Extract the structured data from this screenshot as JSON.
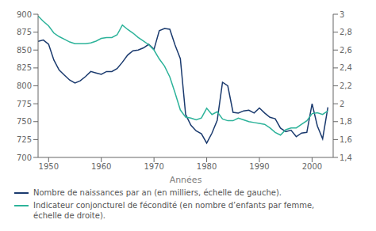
{
  "chart_data": {
    "type": "line",
    "xlabel": "Années",
    "x": [
      1948,
      1949,
      1950,
      1951,
      1952,
      1953,
      1954,
      1955,
      1956,
      1957,
      1958,
      1959,
      1960,
      1961,
      1962,
      1963,
      1964,
      1965,
      1966,
      1967,
      1968,
      1969,
      1970,
      1971,
      1972,
      1973,
      1974,
      1975,
      1976,
      1977,
      1978,
      1979,
      1980,
      1981,
      1982,
      1983,
      1984,
      1985,
      1986,
      1987,
      1988,
      1989,
      1990,
      1991,
      1992,
      1993,
      1994,
      1995,
      1996,
      1997,
      1998,
      1999,
      2000,
      2001,
      2002,
      2003
    ],
    "series": [
      {
        "name": "Nombre de naissances par an (en milliers, échelle de gauche).",
        "color": "#1a3a6e",
        "axis": "y",
        "values": [
          862,
          864,
          858,
          836,
          822,
          815,
          808,
          804,
          807,
          813,
          820,
          818,
          816,
          820,
          820,
          824,
          833,
          843,
          849,
          850,
          853,
          858,
          851,
          877,
          880,
          879,
          857,
          838,
          760,
          745,
          737,
          733,
          720,
          734,
          752,
          805,
          800,
          763,
          762,
          765,
          766,
          762,
          769,
          762,
          756,
          754,
          741,
          736,
          738,
          729,
          734,
          735,
          775,
          744,
          726,
          770
        ]
      },
      {
        "name": "Indicateur conjoncturel de fécondité (en nombre d’enfants par femme,\néchelle de droite).",
        "color": "#2db39a",
        "axis": "y2",
        "values": [
          2.98,
          2.92,
          2.87,
          2.79,
          2.75,
          2.72,
          2.69,
          2.67,
          2.67,
          2.67,
          2.68,
          2.7,
          2.73,
          2.74,
          2.74,
          2.77,
          2.88,
          2.83,
          2.79,
          2.74,
          2.7,
          2.66,
          2.6,
          2.5,
          2.42,
          2.3,
          2.12,
          1.93,
          1.85,
          1.84,
          1.82,
          1.84,
          1.95,
          1.88,
          1.91,
          1.83,
          1.81,
          1.81,
          1.84,
          1.82,
          1.8,
          1.79,
          1.78,
          1.77,
          1.73,
          1.68,
          1.65,
          1.71,
          1.73,
          1.73,
          1.77,
          1.81,
          1.89,
          1.9,
          1.88,
          1.92
        ]
      }
    ],
    "xlim": [
      1948,
      2004
    ],
    "xticks": [
      1950,
      1960,
      1970,
      1980,
      1990,
      2000
    ],
    "ylim": [
      700,
      900
    ],
    "yticks": [
      700,
      725,
      750,
      775,
      800,
      825,
      850,
      875,
      900
    ],
    "y2lim": [
      1.4,
      3.0
    ],
    "y2ticks": [
      {
        "value": 1.4,
        "label": "1,4"
      },
      {
        "value": 1.6,
        "label": "1,6"
      },
      {
        "value": 1.8,
        "label": "1,8"
      },
      2,
      {
        "value": 2.2,
        "label": "2,2"
      },
      {
        "value": 2.4,
        "label": "2,4"
      },
      {
        "value": 2.6,
        "label": "2,6"
      },
      {
        "value": 2.8,
        "label": "2,8"
      },
      3
    ],
    "legend": "lower left"
  }
}
